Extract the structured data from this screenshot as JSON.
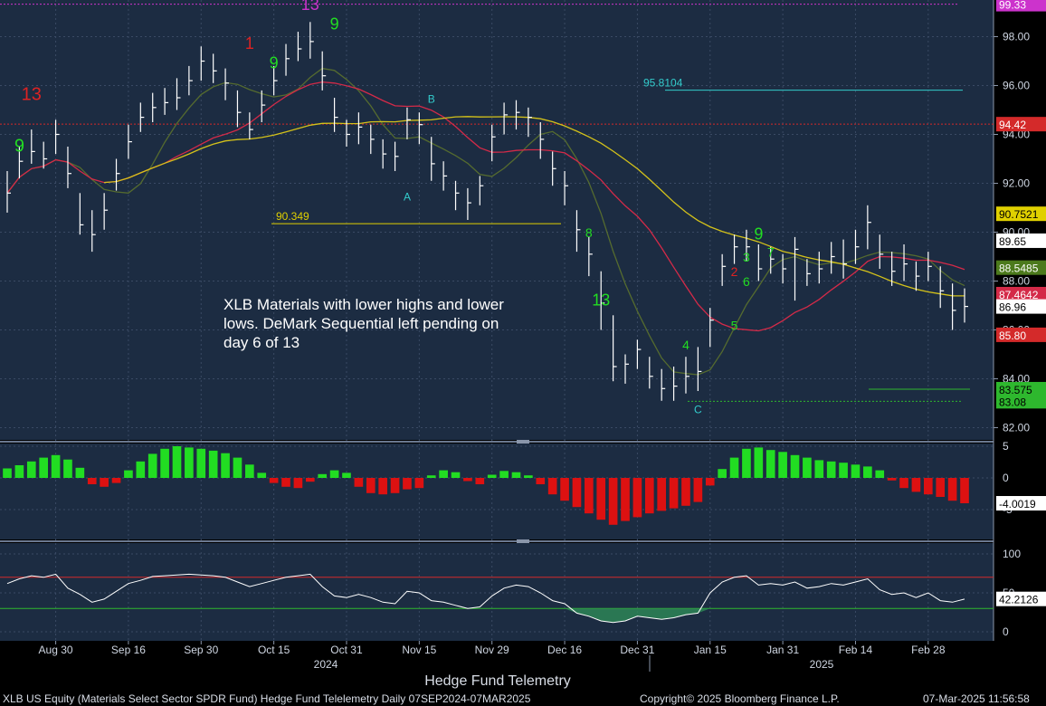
{
  "chart_data": {
    "type": "candlestick",
    "title": "Hedge Fund Telemetry",
    "annotation": "XLB Materials with lower highs and lower lows.  DeMark Sequential left pending on day 6 of 13",
    "footer": {
      "security": "XLB US Equity (Materials Select Sector SPDR Fund) Hedge Fund Telelemetry  Daily 07SEP2024-07MAR2025",
      "copyright": "Copyright© 2025 Bloomberg Finance L.P.",
      "timestamp": "07-Mar-2025 11:56:58"
    },
    "price_panel": {
      "ylim": [
        81.5,
        99.5
      ],
      "yticks": [
        "82.00",
        "84.00",
        "86.00",
        "88.00",
        "90.00",
        "92.00",
        "94.00",
        "96.00",
        "98.00"
      ],
      "tick_values": [
        82,
        84,
        86,
        88,
        90,
        92,
        94,
        96,
        98
      ],
      "price_labels": [
        {
          "text": "99.33",
          "value": 99.33,
          "color": "#cc33cc"
        },
        {
          "text": "94.42",
          "value": 94.42,
          "color": "#d42a2a"
        },
        {
          "text": "90.7521",
          "value": 90.7521,
          "color": "#e0d000"
        },
        {
          "text": "89.65",
          "value": 89.65,
          "color": "#ffffff"
        },
        {
          "text": "88.5485",
          "value": 88.5485,
          "color": "#4c7a1c"
        },
        {
          "text": "87.4642",
          "value": 87.4642,
          "color": "#d42a48"
        },
        {
          "text": "86.96",
          "value": 86.96,
          "color": "#ffffff"
        },
        {
          "text": "85.80",
          "value": 85.8,
          "color": "#d42a2a"
        },
        {
          "text": "83.575",
          "value": 83.575,
          "color": "#2eb82e"
        },
        {
          "text": "83.08",
          "value": 83.08,
          "color": "#2eb82e"
        }
      ],
      "level_labels": [
        {
          "text": "95.8104",
          "value": 95.8104,
          "color": "#33cccc"
        },
        {
          "text": "90.349",
          "value": 90.349,
          "color": "#e0d000"
        }
      ],
      "closes": [
        91.6,
        92.9,
        93.3,
        93.0,
        94.0,
        92.4,
        90.3,
        89.9,
        90.9,
        92.4,
        93.7,
        94.7,
        95.1,
        95.3,
        95.5,
        96.2,
        97.0,
        96.6,
        96.1,
        94.9,
        94.2,
        95.2,
        96.2,
        97.1,
        97.5,
        97.8,
        96.4,
        94.7,
        94.0,
        94.3,
        93.8,
        93.2,
        93.1,
        94.6,
        94.4,
        92.8,
        92.3,
        91.6,
        91.2,
        91.9,
        93.9,
        94.8,
        94.9,
        94.7,
        93.8,
        92.6,
        91.9,
        90.1,
        89.1,
        87.1,
        84.5,
        84.6,
        85.2,
        84.1,
        83.6,
        83.7,
        84.1,
        84.3,
        86.4,
        88.6,
        89.4,
        89.4,
        88.5,
        88.9,
        88.5,
        89.3,
        88.3,
        88.5,
        89.0,
        88.7,
        89.4,
        90.4,
        89.1,
        88.4,
        88.7,
        88.2,
        88.6,
        87.6,
        86.8,
        86.96
      ],
      "ranges": [
        [
          90.8,
          92.5
        ],
        [
          92.2,
          93.5
        ],
        [
          92.8,
          94.2
        ],
        [
          92.6,
          93.7
        ],
        [
          93.2,
          94.6
        ],
        [
          91.8,
          93.5
        ],
        [
          89.9,
          91.6
        ],
        [
          89.2,
          90.9
        ],
        [
          90.1,
          91.6
        ],
        [
          91.7,
          93.0
        ],
        [
          93.0,
          94.4
        ],
        [
          94.1,
          95.3
        ],
        [
          94.5,
          95.7
        ],
        [
          94.8,
          95.9
        ],
        [
          95.0,
          96.3
        ],
        [
          95.6,
          96.8
        ],
        [
          96.2,
          97.6
        ],
        [
          96.1,
          97.3
        ],
        [
          95.4,
          96.7
        ],
        [
          94.3,
          95.8
        ],
        [
          93.8,
          94.9
        ],
        [
          94.5,
          95.8
        ],
        [
          95.6,
          96.8
        ],
        [
          96.4,
          97.7
        ],
        [
          97.0,
          98.2
        ],
        [
          97.1,
          98.6
        ],
        [
          95.8,
          97.4
        ],
        [
          94.1,
          95.5
        ],
        [
          93.5,
          94.6
        ],
        [
          93.6,
          94.9
        ],
        [
          93.2,
          94.4
        ],
        [
          92.6,
          93.8
        ],
        [
          92.5,
          93.7
        ],
        [
          93.8,
          95.1
        ],
        [
          93.6,
          94.9
        ],
        [
          92.1,
          93.9
        ],
        [
          91.7,
          92.9
        ],
        [
          90.9,
          92.1
        ],
        [
          90.5,
          91.8
        ],
        [
          91.1,
          92.3
        ],
        [
          92.9,
          94.4
        ],
        [
          94.0,
          95.3
        ],
        [
          94.2,
          95.4
        ],
        [
          93.9,
          95.1
        ],
        [
          93.0,
          94.5
        ],
        [
          91.9,
          93.3
        ],
        [
          91.1,
          92.5
        ],
        [
          89.2,
          90.9
        ],
        [
          88.2,
          89.8
        ],
        [
          86.0,
          88.4
        ],
        [
          83.9,
          86.6
        ],
        [
          83.8,
          85.0
        ],
        [
          84.4,
          85.6
        ],
        [
          83.6,
          84.9
        ],
        [
          83.1,
          84.4
        ],
        [
          83.1,
          84.5
        ],
        [
          83.4,
          84.9
        ],
        [
          83.5,
          85.3
        ],
        [
          85.3,
          86.9
        ],
        [
          87.8,
          89.1
        ],
        [
          88.7,
          89.9
        ],
        [
          88.8,
          90.1
        ],
        [
          88.0,
          89.5
        ],
        [
          88.3,
          89.4
        ],
        [
          87.9,
          89.1
        ],
        [
          87.2,
          89.8
        ],
        [
          87.8,
          88.9
        ],
        [
          87.9,
          89.2
        ],
        [
          88.3,
          89.6
        ],
        [
          88.1,
          89.7
        ],
        [
          88.7,
          90.1
        ],
        [
          89.3,
          91.1
        ],
        [
          88.5,
          89.9
        ],
        [
          87.8,
          89.2
        ],
        [
          88.0,
          89.5
        ],
        [
          87.6,
          88.8
        ],
        [
          88.0,
          89.2
        ],
        [
          86.9,
          88.6
        ],
        [
          86.0,
          87.9
        ],
        [
          86.3,
          87.7
        ]
      ]
    },
    "histogram_panel": {
      "yticks": [
        "5",
        "0",
        "-5"
      ],
      "tick_values": [
        5,
        0,
        -5
      ],
      "last_value_label": "-4.0019",
      "values": [
        1.5,
        2.0,
        2.6,
        3.2,
        3.6,
        2.9,
        1.6,
        -1.0,
        -1.4,
        -0.8,
        1.2,
        2.6,
        3.8,
        4.6,
        5.0,
        4.8,
        4.6,
        4.3,
        3.9,
        3.2,
        2.1,
        0.8,
        -0.8,
        -1.4,
        -1.6,
        -0.6,
        0.6,
        1.2,
        0.8,
        -1.4,
        -2.4,
        -2.6,
        -2.4,
        -1.8,
        -1.6,
        0.4,
        1.2,
        0.9,
        -0.5,
        -1.0,
        0.5,
        1.1,
        0.9,
        0.4,
        -1.0,
        -2.6,
        -3.6,
        -4.6,
        -5.6,
        -6.6,
        -7.4,
        -6.8,
        -6.2,
        -5.6,
        -5.2,
        -4.8,
        -4.4,
        -3.8,
        -1.2,
        1.4,
        3.2,
        4.6,
        4.8,
        4.4,
        4.1,
        3.6,
        3.2,
        2.8,
        2.6,
        2.4,
        2.1,
        1.8,
        1.2,
        -0.4,
        -1.6,
        -2.2,
        -2.6,
        -3.0,
        -3.6,
        -4.0
      ]
    },
    "oscillator_panel": {
      "yticks": [
        "100",
        "50",
        "0"
      ],
      "tick_values": [
        100,
        50,
        0
      ],
      "last_value_label": "42.2126",
      "overbought": 70,
      "oversold": 30,
      "values": [
        62,
        68,
        72,
        70,
        74,
        56,
        48,
        38,
        42,
        52,
        62,
        66,
        71,
        72,
        73,
        74,
        73,
        72,
        70,
        64,
        58,
        62,
        66,
        70,
        72,
        74,
        58,
        46,
        44,
        48,
        44,
        38,
        36,
        52,
        50,
        40,
        38,
        34,
        30,
        32,
        46,
        56,
        60,
        58,
        50,
        40,
        36,
        24,
        20,
        14,
        12,
        14,
        20,
        18,
        16,
        18,
        22,
        24,
        50,
        64,
        70,
        72,
        60,
        62,
        60,
        64,
        56,
        58,
        62,
        60,
        64,
        68,
        54,
        48,
        50,
        44,
        50,
        40,
        38,
        42
      ]
    },
    "x_axis": {
      "labels": [
        "Aug 30",
        "Sep 16",
        "Sep 30",
        "Oct 15",
        "Oct 31",
        "Nov 15",
        "Nov 29",
        "Dec 16",
        "Dec 31",
        "Jan 15",
        "Jan 31",
        "Feb 14",
        "Feb 28"
      ],
      "years": [
        "2024",
        "2025"
      ]
    },
    "demark_labels": [
      "13",
      "13",
      "9",
      "9",
      "9",
      "9",
      "13",
      "1",
      "2",
      "3",
      "4",
      "5",
      "6",
      "7",
      "8",
      "A",
      "B",
      "C"
    ],
    "colors": {
      "background": "#1c2c42",
      "grid": "#3a4a64",
      "bars": "#ffffff",
      "ma_short": "#556b2f",
      "ma_mid": "#d42a48",
      "ma_long": "#d4c21a",
      "hist_up": "#22dd22",
      "hist_down": "#dd1111",
      "osc_line": "#ffffff",
      "osc_fill": "#2e8b57"
    }
  }
}
